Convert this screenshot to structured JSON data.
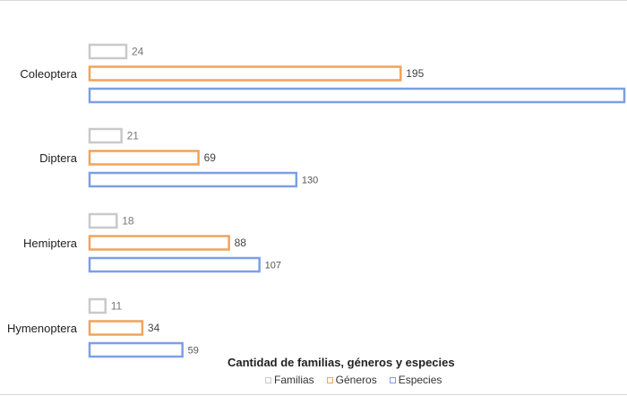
{
  "chart_data": {
    "type": "bar",
    "orientation": "horizontal",
    "title": "Cantidad de familias, géneros y especies",
    "categories": [
      "Coleoptera",
      "Diptera",
      "Hemiptera",
      "Hymenoptera"
    ],
    "series": [
      {
        "name": "Familias",
        "values": [
          24,
          21,
          18,
          11
        ],
        "color": "#c9c9c9"
      },
      {
        "name": "Géneros",
        "values": [
          195,
          69,
          88,
          34
        ],
        "color": "#f0a35c"
      },
      {
        "name": "Especies",
        "values": [
          null,
          130,
          107,
          59
        ],
        "color": "#7c9fe6"
      }
    ],
    "data_labels_shown": true,
    "legend_position": "bottom",
    "grid": false,
    "x_axis_visible": false
  }
}
